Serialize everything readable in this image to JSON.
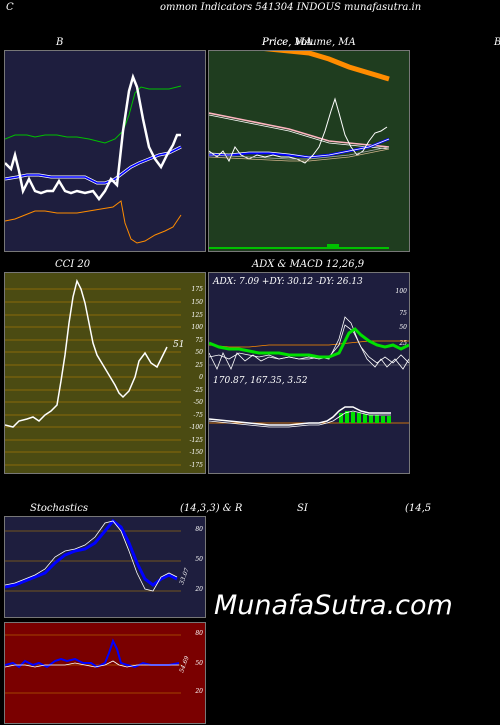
{
  "header": {
    "title": "ommon  Indicators 541304  INDOUS munafasutra.in",
    "left_letter": "C"
  },
  "bb": {
    "title": "B"
  },
  "price": {
    "title": "Price,  Volume,  MA",
    "overlay": "Price,  MA"
  },
  "right_letter": "B",
  "cci": {
    "title": "CCI 20",
    "value": "51",
    "ticks": [
      "175",
      "150",
      "125",
      "100",
      "75",
      "50",
      "25",
      "0",
      "-25",
      "-50",
      "-75",
      "-100",
      "-125",
      "-150",
      "-175"
    ]
  },
  "adx": {
    "title": "ADX  & MACD 12,26,9",
    "readout": "ADX: 7.09 +DY: 30.12  -DY: 26.13"
  },
  "macd": {
    "readout": "170.87,  167.35,  3.52"
  },
  "stoch": {
    "title": "Stochastics",
    "params": "(14,3,3) & R",
    "value": "33.07",
    "ticks": [
      "80",
      "50",
      "20"
    ]
  },
  "rsi": {
    "title": "SI",
    "params": "(14,5",
    "value": "54.69",
    "ticks": [
      "80",
      "50",
      "20"
    ]
  },
  "watermark": "MunafaSutra.com",
  "colors": {
    "navy": "#1e1e3e",
    "green_panel": "#1f3d1f",
    "cci_panel": "#4b4b12",
    "rsi_panel": "#7a0000",
    "blue": "#0000ff",
    "orange": "#ff8c00"
  }
}
